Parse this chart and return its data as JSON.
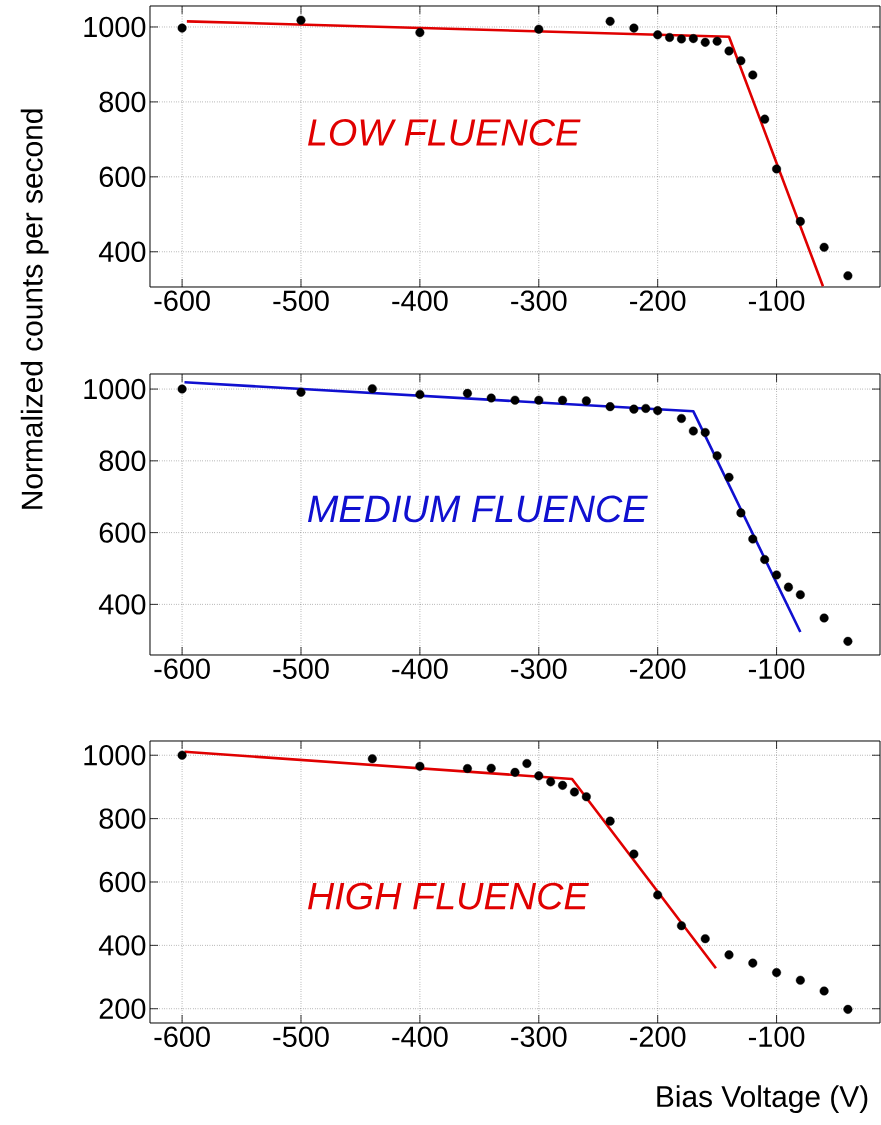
{
  "chart_data": [
    {
      "type": "scatter",
      "xlim": [
        -627,
        -13
      ],
      "ylim": [
        306,
        1056
      ],
      "xticks": [
        -600,
        -500,
        -400,
        -300,
        -200,
        -100
      ],
      "yticks": [
        400,
        600,
        800,
        1000
      ],
      "grid": true,
      "series": [
        {
          "color": "#000000",
          "marker": "circle",
          "x": [
            -600,
            -500,
            -400,
            -300,
            -240,
            -220,
            -200,
            -190,
            -180,
            -170,
            -160,
            -150,
            -140,
            -130,
            -120,
            -110,
            -100,
            -80,
            -60,
            -40
          ],
          "values": [
            997,
            1018,
            985,
            994,
            1015,
            997,
            979,
            972,
            968,
            969,
            959,
            962,
            936,
            910,
            872,
            754,
            621,
            481,
            412,
            336
          ]
        },
        {
          "type": "line",
          "name": "LOW FLUENCE",
          "color": "#e00000",
          "marker": "none",
          "x": [
            -596,
            -140,
            -61
          ],
          "values": [
            1015,
            974,
            308
          ]
        }
      ]
    },
    {
      "type": "scatter",
      "xlim": [
        -627,
        -13
      ],
      "ylim": [
        259,
        1042
      ],
      "xticks": [
        -600,
        -500,
        -400,
        -300,
        -200,
        -100
      ],
      "yticks": [
        400,
        600,
        800,
        1000
      ],
      "grid": true,
      "ylabel": "Normalized counts per second",
      "series": [
        {
          "color": "#000000",
          "marker": "circle",
          "x": [
            -600,
            -500,
            -440,
            -400,
            -360,
            -340,
            -320,
            -300,
            -280,
            -260,
            -240,
            -220,
            -210,
            -200,
            -180,
            -170,
            -160,
            -150,
            -140,
            -130,
            -120,
            -110,
            -100,
            -90,
            -80,
            -60,
            -40
          ],
          "values": [
            1000,
            991,
            1001,
            985,
            988,
            975,
            969,
            969,
            969,
            967,
            951,
            944,
            946,
            940,
            918,
            883,
            879,
            814,
            754,
            655,
            582,
            525,
            482,
            448,
            427,
            362,
            297
          ]
        },
        {
          "type": "line",
          "name": "MEDIUM FLUENCE",
          "color": "#1010d0",
          "marker": "none",
          "x": [
            -598,
            -170,
            -80
          ],
          "values": [
            1019,
            938,
            323
          ]
        }
      ]
    },
    {
      "type": "scatter",
      "xlim": [
        -627,
        -13
      ],
      "ylim": [
        155,
        1045
      ],
      "xticks": [
        -600,
        -500,
        -400,
        -300,
        -200,
        -100
      ],
      "yticks": [
        200,
        400,
        600,
        800,
        1000
      ],
      "grid": true,
      "xlabel": "Bias Voltage (V)",
      "series": [
        {
          "color": "#000000",
          "marker": "circle",
          "x": [
            -600,
            -440,
            -400,
            -360,
            -340,
            -320,
            -310,
            -300,
            -290,
            -280,
            -270,
            -260,
            -240,
            -220,
            -200,
            -180,
            -160,
            -140,
            -120,
            -100,
            -80,
            -60,
            -40
          ],
          "values": [
            1000,
            989,
            965,
            958,
            959,
            946,
            974,
            935,
            916,
            905,
            884,
            869,
            792,
            688,
            559,
            462,
            421,
            370,
            344,
            314,
            290,
            256,
            198
          ]
        },
        {
          "type": "line",
          "name": "HIGH FLUENCE",
          "color": "#e00000",
          "marker": "none",
          "x": [
            -598,
            -272,
            -151
          ],
          "values": [
            1011,
            925,
            328
          ]
        }
      ]
    }
  ]
}
